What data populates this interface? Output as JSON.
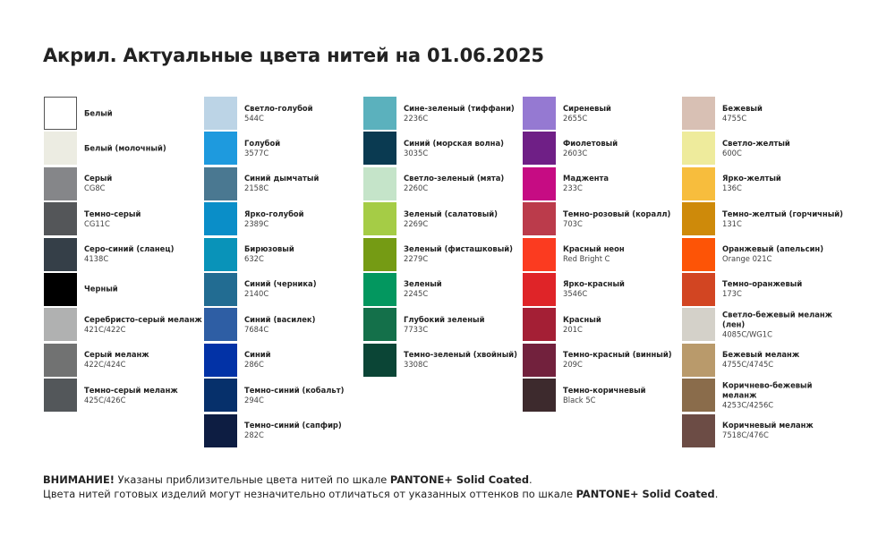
{
  "title": "Акрил. Актуальные цвета нитей на 01.06.2025",
  "columns": [
    [
      {
        "name": "Белый",
        "code": "",
        "color": "#ffffff"
      },
      {
        "name": "Белый (молочный)",
        "code": "",
        "color": "#ecece2"
      },
      {
        "name": "Серый",
        "code": "CG8C",
        "color": "#858689"
      },
      {
        "name": "Темно-серый",
        "code": "CG11C",
        "color": "#545659"
      },
      {
        "name": "Серо-синий (сланец)",
        "code": "4138C",
        "color": "#353f48"
      },
      {
        "name": "Черный",
        "code": "",
        "color": "#000000"
      },
      {
        "name": "Серебристо-серый меланж",
        "code": "421C/422C",
        "color": "#b0b1b1"
      },
      {
        "name": "Серый меланж",
        "code": "422C/424C",
        "color": "#717272"
      },
      {
        "name": "Темно-серый меланж",
        "code": "425C/426C",
        "color": "#53575a"
      }
    ],
    [
      {
        "name": "Светло-голубой",
        "code": "544C",
        "color": "#bcd4e6"
      },
      {
        "name": "Голубой",
        "code": "3577C",
        "color": "#1e9ade"
      },
      {
        "name": "Синий дымчатый",
        "code": "2158C",
        "color": "#4a7891"
      },
      {
        "name": "Ярко-голубой",
        "code": "2389C",
        "color": "#0a8ec8"
      },
      {
        "name": "Бирюзовый",
        "code": "632C",
        "color": "#0993b9"
      },
      {
        "name": "Синий (черника)",
        "code": "2140C",
        "color": "#226c92"
      },
      {
        "name": "Синий (василек)",
        "code": "7684C",
        "color": "#2e5ea4"
      },
      {
        "name": "Синий",
        "code": "286C",
        "color": "#0232a6"
      },
      {
        "name": "Темно-синий (кобальт)",
        "code": "294C",
        "color": "#06306b"
      },
      {
        "name": "Темно-синий (сапфир)",
        "code": "282C",
        "color": "#0d1d42"
      }
    ],
    [
      {
        "name": "Сине-зеленый (тиффани)",
        "code": "2236C",
        "color": "#5bb1bd"
      },
      {
        "name": "Синий (морская волна)",
        "code": "3035C",
        "color": "#0a3a51"
      },
      {
        "name": "Светло-зеленый (мята)",
        "code": "2260C",
        "color": "#c5e4c9"
      },
      {
        "name": "Зеленый (салатовый)",
        "code": "2269C",
        "color": "#a5cc46"
      },
      {
        "name": "Зеленый (фисташковый)",
        "code": "2279C",
        "color": "#759b14"
      },
      {
        "name": "Зеленый",
        "code": "2245C",
        "color": "#03975f"
      },
      {
        "name": "Глубокий зеленый",
        "code": "7733C",
        "color": "#14704a"
      },
      {
        "name": "Темно-зеленый (хвойный)",
        "code": "3308C",
        "color": "#0b4536"
      }
    ],
    [
      {
        "name": "Сиреневый",
        "code": "2655C",
        "color": "#9579d2"
      },
      {
        "name": "Фиолетовый",
        "code": "2603C",
        "color": "#6f1f86"
      },
      {
        "name": "Маджента",
        "code": "233C",
        "color": "#c60c83"
      },
      {
        "name": "Темно-розовый (коралл)",
        "code": "703C",
        "color": "#bb3b4b"
      },
      {
        "name": "Красный неон",
        "code": "Red Bright C",
        "color": "#fb3b20"
      },
      {
        "name": "Ярко-красный",
        "code": "3546C",
        "color": "#df2428"
      },
      {
        "name": "Красный",
        "code": "201C",
        "color": "#a41f35"
      },
      {
        "name": "Темно-красный (винный)",
        "code": "209C",
        "color": "#72213d"
      },
      {
        "name": "Темно-коричневый",
        "code": "Black 5C",
        "color": "#3d2a2d"
      }
    ],
    [
      {
        "name": "Бежевый",
        "code": "4755C",
        "color": "#d8c0b4"
      },
      {
        "name": "Светло-желтый",
        "code": "600C",
        "color": "#eeeb9c"
      },
      {
        "name": "Ярко-желтый",
        "code": "136C",
        "color": "#f7bd3d"
      },
      {
        "name": "Темно-желтый (горчичный)",
        "code": "131C",
        "color": "#ce8a0a"
      },
      {
        "name": "Оранжевый (апельсин)",
        "code": "Orange 021C",
        "color": "#fd5406"
      },
      {
        "name": "Темно-оранжевый",
        "code": "173C",
        "color": "#d24522"
      },
      {
        "name": "Светло-бежевый меланж (лен)",
        "code": "4085C/WG1C",
        "color": "#d4d1c9"
      },
      {
        "name": "Бежевый меланж",
        "code": "4755C/4745C",
        "color": "#b99a6b"
      },
      {
        "name": "Коричнево-бежевый меланж",
        "code": "4253C/4256C",
        "color": "#8a6c4b"
      },
      {
        "name": "Коричневый меланж",
        "code": "7518C/476C",
        "color": "#6c4c45"
      }
    ]
  ],
  "note": {
    "line1_bold": "ВНИМАНИЕ!",
    "line1_text": " Указаны приблизительные цвета нитей по шкале ",
    "line1_brand": "PANTONE+ Solid Coated",
    "line1_end": ".",
    "line2_text": "Цвета нитей готовых изделий могут незначительно отличаться от указанных оттенков по шкале ",
    "line2_brand": "PANTONE+ Solid Coated",
    "line2_end": "."
  }
}
